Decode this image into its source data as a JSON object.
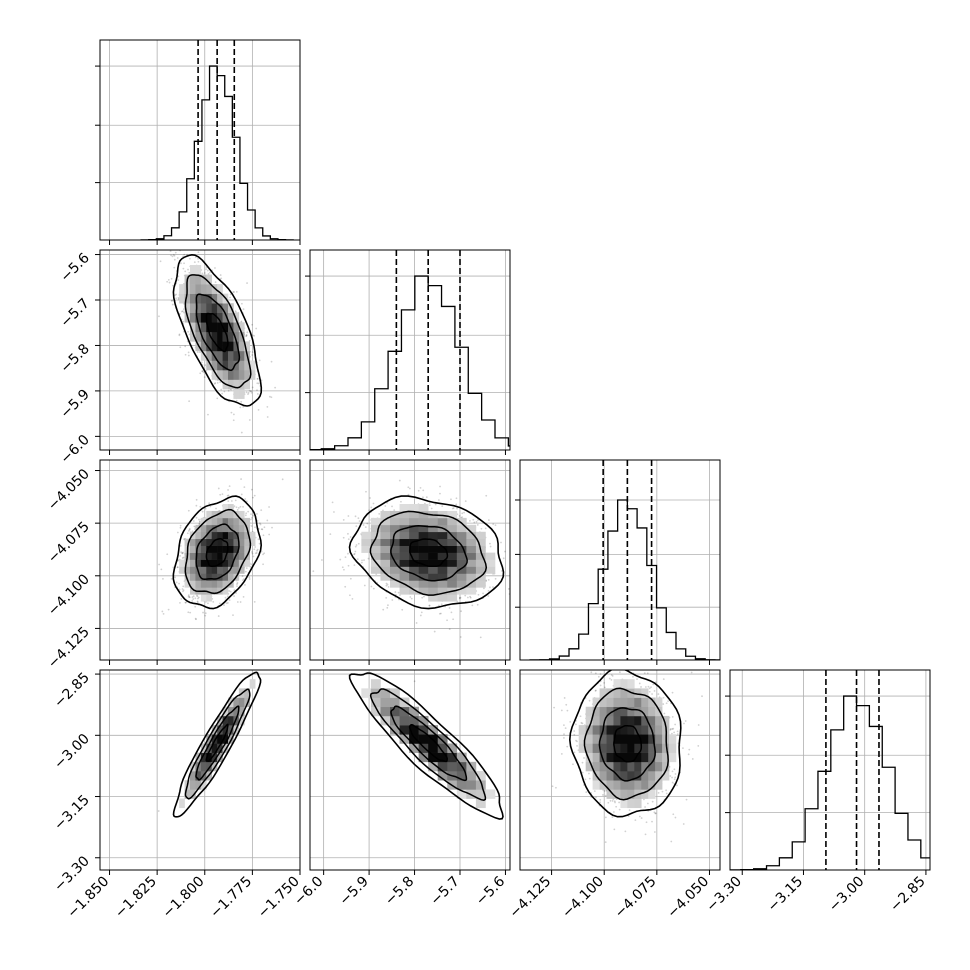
{
  "chart_data": {
    "type": "corner",
    "title": "",
    "parameters": [
      {
        "median": -1.7935,
        "sigma": 0.0095,
        "range": [
          -1.855,
          -1.75
        ],
        "hist_ylim": [
          0,
          1.15
        ],
        "ticks": [
          -1.85,
          -1.825,
          -1.8,
          -1.775,
          -1.75
        ],
        "tick_labels": [
          "−1.850",
          "−1.825",
          "−1.800",
          "−1.775",
          "−1.750"
        ],
        "quantiles": [
          -1.8035,
          -1.7935,
          -1.7845
        ]
      },
      {
        "median": -5.77,
        "sigma": 0.07,
        "range": [
          -6.03,
          -5.59
        ],
        "hist_ylim": [
          0,
          1.15
        ],
        "ticks": [
          -6.0,
          -5.9,
          -5.8,
          -5.7,
          -5.6
        ],
        "tick_labels": [
          "−6.0",
          "−5.9",
          "−5.8",
          "−5.7",
          "−5.6"
        ],
        "quantiles": [
          -5.84,
          -5.77,
          -5.7
        ]
      },
      {
        "median": -4.089,
        "sigma": 0.011,
        "range": [
          -4.14,
          -4.045
        ],
        "hist_ylim": [
          0,
          1.25
        ],
        "ticks": [
          -4.125,
          -4.1,
          -4.075,
          -4.05
        ],
        "tick_labels": [
          "−4.125",
          "−4.100",
          "−4.075",
          "−4.050"
        ],
        "quantiles": [
          -4.1005,
          -4.089,
          -4.0775
        ]
      },
      {
        "median": -3.02,
        "sigma": 0.075,
        "range": [
          -3.33,
          -2.84
        ],
        "hist_ylim": [
          0,
          1.15
        ],
        "ticks": [
          -3.3,
          -3.15,
          -3.0,
          -2.85
        ],
        "tick_labels": [
          "−3.30",
          "−3.15",
          "−3.00",
          "−2.85"
        ],
        "quantiles": [
          -3.095,
          -3.02,
          -2.965
        ]
      }
    ],
    "correlations": [
      {
        "pair": [
          0,
          1
        ],
        "rho": -0.65
      },
      {
        "pair": [
          0,
          2
        ],
        "rho": 0.3
      },
      {
        "pair": [
          0,
          3
        ],
        "rho": 0.93
      },
      {
        "pair": [
          1,
          2
        ],
        "rho": -0.18
      },
      {
        "pair": [
          1,
          3
        ],
        "rho": -0.9
      },
      {
        "pair": [
          2,
          3
        ],
        "rho": -0.05
      }
    ],
    "histogram_bins": 20,
    "contour_levels_sigma": [
      0.5,
      1.0,
      1.5,
      2.0
    ],
    "grid": true,
    "line_style_quantiles": "dashed",
    "axis_labels": []
  }
}
